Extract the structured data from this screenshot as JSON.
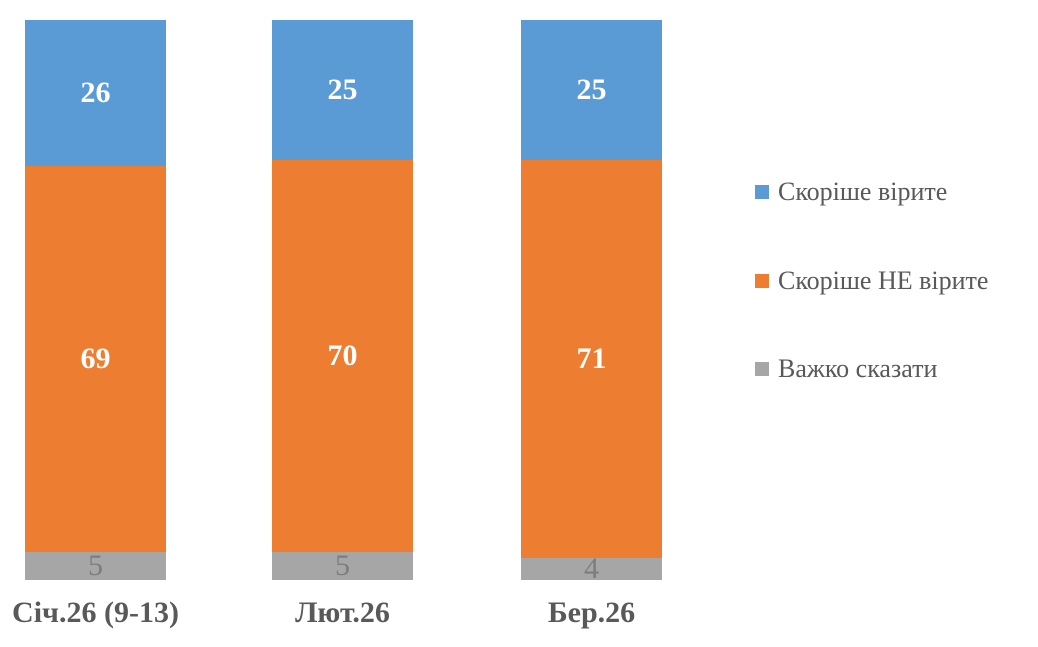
{
  "chart_data": {
    "type": "bar",
    "stacked": true,
    "orientation": "vertical",
    "categories": [
      "Січ.26 (9-13)",
      "Лют.26",
      "Бер.26"
    ],
    "series": [
      {
        "name": "Скоріше вірите",
        "color": "#5b9bd5",
        "values": [
          26,
          25,
          25
        ]
      },
      {
        "name": "Скоріше НЕ вірите",
        "color": "#ed7d31",
        "values": [
          69,
          70,
          71
        ]
      },
      {
        "name": "Важко сказати",
        "color": "#a6a6a6",
        "values": [
          5,
          5,
          4
        ]
      }
    ],
    "title": "",
    "xlabel": "",
    "ylabel": "",
    "ylim": [
      0,
      100
    ],
    "grid": false,
    "legend_position": "right",
    "value_labels_shown": true,
    "text_colors": {
      "value_label_on_color": "#ffffff",
      "value_label_on_gray": "#7d7d7d",
      "axis_and_legend_text": "#595959"
    }
  }
}
